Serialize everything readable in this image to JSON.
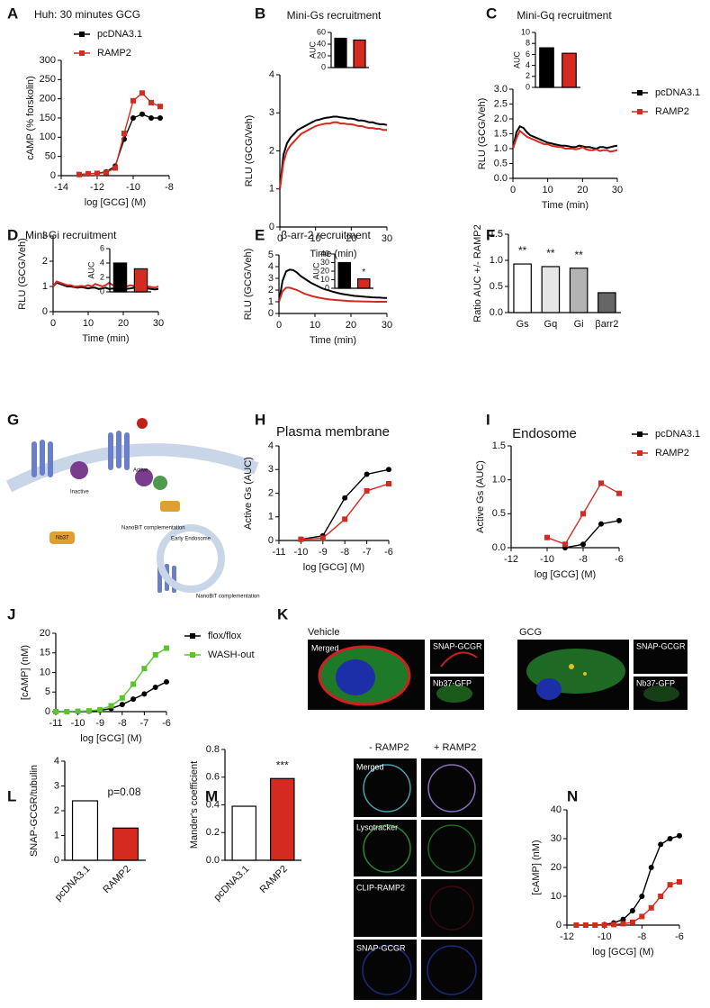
{
  "panel_letters": [
    "A",
    "B",
    "C",
    "D",
    "E",
    "F",
    "G",
    "H",
    "I",
    "J",
    "K",
    "L",
    "M",
    "N"
  ],
  "diagram": {
    "labels": [
      "Inactive",
      "Active",
      "Nb37",
      "NanoBiT complementation",
      "Early Endosome",
      "NanoBiT complementation"
    ]
  },
  "micrographs_K": {
    "conditions": [
      "Vehicle",
      "GCG"
    ],
    "channels": [
      "Merged",
      "SNAP-GCGR",
      "Nb37-GFP"
    ]
  },
  "micrographs_M": {
    "conditions": [
      "- RAMP2",
      "+ RAMP2"
    ],
    "channels": [
      "Merged",
      "Lysotracker",
      "CLIP-RAMP2",
      "SNAP-GCGR"
    ]
  },
  "chart_data": [
    {
      "type": "line",
      "title": "Huh: 30 minutes GCG",
      "xlabel": "log [GCG] (M)",
      "ylabel": "cAMP (% forskolin)",
      "legend": "upper left",
      "x": [
        -13,
        -12.5,
        -12,
        -11.5,
        -11,
        -10.5,
        -10,
        -9.5,
        -9,
        -8.5
      ],
      "xlim": [
        -14,
        -8
      ],
      "xticks": [
        -14,
        -12,
        -10,
        -8
      ],
      "ylim": [
        0,
        300
      ],
      "yticks": [
        0,
        50,
        100,
        150,
        200,
        250,
        300
      ],
      "series": [
        {
          "name": "pcDNA3.1",
          "color": "#000000",
          "values": [
            3,
            5,
            6,
            10,
            25,
            95,
            150,
            160,
            150,
            150
          ]
        },
        {
          "name": "RAMP2",
          "color": "#d42a20",
          "values": [
            3,
            5,
            6,
            8,
            20,
            110,
            195,
            215,
            190,
            180
          ]
        }
      ]
    },
    {
      "type": "line",
      "title": "Mini-Gs recruitment",
      "xlabel": "Time (min)",
      "ylabel": "RLU (GCG/Veh)",
      "x": [
        0,
        1,
        2,
        3,
        4,
        5,
        6,
        7,
        8,
        9,
        10,
        11,
        12,
        13,
        14,
        15,
        16,
        17,
        18,
        19,
        20,
        21,
        22,
        23,
        24,
        25,
        26,
        27,
        28,
        29,
        30
      ],
      "xlim": [
        0,
        30
      ],
      "xticks": [
        0,
        10,
        20,
        30
      ],
      "ylim": [
        0,
        4
      ],
      "yticks": [
        0,
        1,
        2,
        3,
        4
      ],
      "series": [
        {
          "name": "pcDNA3.1",
          "color": "#000000",
          "values": [
            1.0,
            1.9,
            2.2,
            2.35,
            2.45,
            2.55,
            2.6,
            2.65,
            2.7,
            2.75,
            2.8,
            2.82,
            2.85,
            2.87,
            2.88,
            2.9,
            2.9,
            2.88,
            2.87,
            2.85,
            2.85,
            2.83,
            2.8,
            2.8,
            2.78,
            2.75,
            2.75,
            2.72,
            2.7,
            2.7,
            2.68
          ]
        },
        {
          "name": "RAMP2",
          "color": "#d42a20",
          "values": [
            1.0,
            1.7,
            2.0,
            2.15,
            2.25,
            2.35,
            2.45,
            2.5,
            2.55,
            2.6,
            2.65,
            2.68,
            2.7,
            2.72,
            2.72,
            2.75,
            2.75,
            2.72,
            2.72,
            2.7,
            2.7,
            2.68,
            2.65,
            2.65,
            2.62,
            2.6,
            2.6,
            2.58,
            2.58,
            2.55,
            2.55
          ]
        }
      ]
    },
    {
      "type": "bar",
      "ylabel": "AUC",
      "categories": [
        null,
        null
      ],
      "values": [
        50,
        47
      ],
      "colors": [
        "#000000",
        "#d42a20"
      ],
      "ylim": [
        0,
        60
      ],
      "yticks": [
        0,
        20,
        40,
        60
      ]
    },
    {
      "type": "line",
      "title": "Mini-Gq recruitment",
      "xlabel": "Time (min)",
      "ylabel": "RLU (GCG/Veh)",
      "legend": "outside right",
      "x": [
        0,
        1,
        2,
        3,
        4,
        5,
        6,
        7,
        8,
        9,
        10,
        11,
        12,
        13,
        14,
        15,
        16,
        17,
        18,
        19,
        20,
        21,
        22,
        23,
        24,
        25,
        26,
        27,
        28,
        29,
        30
      ],
      "xlim": [
        0,
        30
      ],
      "xticks": [
        0,
        10,
        20,
        30
      ],
      "ylim": [
        0,
        3
      ],
      "yticks": [
        {
          "value": 0,
          "label": "0.0"
        },
        {
          "value": 0.5,
          "label": "0.5"
        },
        {
          "value": 1,
          "label": "1.0"
        },
        {
          "value": 1.5,
          "label": "1.5"
        },
        {
          "value": 2,
          "label": "2.0"
        },
        {
          "value": 2.5,
          "label": "2.5"
        },
        {
          "value": 3,
          "label": "3.0"
        }
      ],
      "series": [
        {
          "name": "pcDNA3.1",
          "color": "#000000",
          "values": [
            1.0,
            1.55,
            1.75,
            1.7,
            1.55,
            1.45,
            1.4,
            1.35,
            1.3,
            1.25,
            1.2,
            1.18,
            1.15,
            1.12,
            1.1,
            1.1,
            1.08,
            1.05,
            1.05,
            1.1,
            1.08,
            1.05,
            1.05,
            1.02,
            1.0,
            1.05,
            1.05,
            1.02,
            1.05,
            1.08,
            1.1
          ]
        },
        {
          "name": "RAMP2",
          "color": "#d42a20",
          "values": [
            1.0,
            1.35,
            1.6,
            1.5,
            1.4,
            1.35,
            1.3,
            1.25,
            1.2,
            1.15,
            1.15,
            1.1,
            1.08,
            1.05,
            1.05,
            1.0,
            1.0,
            1.0,
            0.98,
            1.0,
            1.05,
            0.98,
            0.95,
            0.95,
            0.98,
            0.92,
            0.95,
            0.95,
            0.9,
            0.92,
            0.95
          ]
        }
      ]
    },
    {
      "type": "bar",
      "ylabel": "AUC",
      "categories": [
        null,
        null
      ],
      "values": [
        7.2,
        6.2
      ],
      "colors": [
        "#000000",
        "#d42a20"
      ],
      "ylim": [
        0,
        10
      ],
      "yticks": [
        0,
        2,
        4,
        6,
        8,
        10
      ]
    },
    {
      "type": "line",
      "title": "Mini-Gi recruitment",
      "xlabel": "Time (min)",
      "ylabel": "RLU (GCG/Veh)",
      "x": [
        0,
        1,
        2,
        3,
        4,
        5,
        6,
        7,
        8,
        9,
        10,
        11,
        12,
        13,
        14,
        15,
        16,
        17,
        18,
        19,
        20,
        21,
        22,
        23,
        24,
        25,
        26,
        27,
        28,
        29,
        30
      ],
      "xlim": [
        0,
        30
      ],
      "xticks": [
        0,
        10,
        20,
        30
      ],
      "ylim": [
        0,
        3
      ],
      "yticks": [
        0,
        1,
        2,
        3
      ],
      "series": [
        {
          "name": "pcDNA3.1",
          "color": "#000000",
          "values": [
            1.0,
            1.15,
            1.1,
            1.05,
            1.0,
            1.0,
            0.98,
            0.95,
            0.98,
            0.95,
            0.92,
            0.95,
            0.95,
            0.9,
            0.92,
            0.95,
            0.9,
            0.92,
            0.9,
            0.95,
            0.92,
            0.9,
            0.92,
            0.95,
            0.9,
            0.92,
            0.9,
            0.92,
            0.9,
            0.88,
            0.9
          ]
        },
        {
          "name": "RAMP2",
          "color": "#d42a20",
          "values": [
            1.0,
            1.2,
            1.15,
            1.1,
            1.05,
            1.05,
            1.0,
            1.0,
            1.02,
            1.0,
            1.05,
            1.0,
            1.1,
            1.05,
            1.0,
            1.05,
            1.15,
            1.05,
            1.0,
            1.1,
            1.05,
            1.0,
            1.05,
            1.02,
            1.0,
            1.05,
            1.0,
            1.0,
            0.98,
            0.95,
            1.0
          ]
        }
      ]
    },
    {
      "type": "bar",
      "ylabel": "AUC",
      "categories": [
        null,
        null
      ],
      "values": [
        4,
        3.2
      ],
      "colors": [
        "#000000",
        "#d42a20"
      ],
      "ylim": [
        0,
        6
      ],
      "yticks": [
        0,
        2,
        4,
        6
      ]
    },
    {
      "type": "line",
      "title": "β-arr-2 recruitment",
      "xlabel": "Time (min)",
      "ylabel": "RLU (GCG/Veh)",
      "x": [
        0,
        1,
        2,
        3,
        4,
        5,
        6,
        7,
        8,
        9,
        10,
        11,
        12,
        13,
        14,
        15,
        16,
        17,
        18,
        19,
        20,
        21,
        22,
        23,
        24,
        25,
        26,
        27,
        28,
        29,
        30
      ],
      "xlim": [
        0,
        30
      ],
      "xticks": [
        0,
        10,
        20,
        30
      ],
      "ylim": [
        0,
        5
      ],
      "yticks": [
        0,
        1,
        2,
        3,
        4,
        5
      ],
      "series": [
        {
          "name": "pcDNA3.1",
          "color": "#000000",
          "values": [
            1.0,
            2.8,
            3.6,
            3.75,
            3.7,
            3.5,
            3.2,
            3.0,
            2.8,
            2.6,
            2.45,
            2.3,
            2.15,
            2.05,
            1.95,
            1.85,
            1.78,
            1.7,
            1.65,
            1.6,
            1.55,
            1.5,
            1.48,
            1.45,
            1.42,
            1.4,
            1.38,
            1.36,
            1.35,
            1.33,
            1.32
          ]
        },
        {
          "name": "RAMP2",
          "color": "#d42a20",
          "values": [
            1.0,
            1.9,
            2.2,
            2.2,
            2.1,
            2.0,
            1.85,
            1.7,
            1.6,
            1.5,
            1.42,
            1.35,
            1.3,
            1.25,
            1.2,
            1.18,
            1.15,
            1.12,
            1.1,
            1.08,
            1.06,
            1.05,
            1.04,
            1.03,
            1.02,
            1.02,
            1.01,
            1.0,
            1.0,
            1.0,
            1.0
          ]
        }
      ]
    },
    {
      "type": "bar",
      "ylabel": "AUC",
      "categories": [
        null,
        null
      ],
      "values": [
        30,
        11
      ],
      "colors": [
        "#000000",
        "#d42a20"
      ],
      "significance": [
        null,
        "*"
      ],
      "ylim": [
        0,
        40
      ],
      "yticks": [
        0,
        10,
        20,
        30,
        40
      ]
    },
    {
      "type": "bar",
      "ylabel": "Ratio AUC +/- RAMP2",
      "categories": [
        "Gs",
        "Gq",
        "Gi",
        "βarr2"
      ],
      "values": [
        0.93,
        0.88,
        0.85,
        0.38
      ],
      "colors": [
        "#ffffff",
        "#e6e6e6",
        "#b3b3b3",
        "#666666"
      ],
      "significance": [
        "**",
        "**",
        "**",
        null
      ],
      "ylim": [
        0,
        1.5
      ],
      "yticks": [
        {
          "value": 0,
          "label": "0.0"
        },
        {
          "value": 0.5,
          "label": "0.5"
        },
        {
          "value": 1,
          "label": "1.0"
        },
        {
          "value": 1.5,
          "label": "1.5"
        }
      ]
    },
    {
      "type": "line",
      "title": "Plasma membrane",
      "xlabel": "log [GCG] (M)",
      "ylabel": "Active Gs (AUC)",
      "x": [
        -10,
        -9,
        -8,
        -7,
        -6
      ],
      "xlim": [
        -11,
        -6
      ],
      "xticks": [
        -11,
        -10,
        -9,
        -8,
        -7,
        -6
      ],
      "ylim": [
        0,
        4
      ],
      "yticks": [
        0,
        1,
        2,
        3,
        4
      ],
      "series": [
        {
          "name": "pcDNA3.1",
          "color": "#000000",
          "values": [
            0.05,
            0.2,
            1.8,
            2.8,
            3.0
          ]
        },
        {
          "name": "RAMP2",
          "color": "#d42a20",
          "values": [
            0.05,
            0.1,
            0.9,
            2.1,
            2.4
          ]
        }
      ]
    },
    {
      "type": "line",
      "title": "Endosome",
      "xlabel": "log [GCG] (M)",
      "ylabel": "Active Gs (AUC)",
      "legend": "outside right",
      "x": [
        -10,
        -9,
        -8,
        -7,
        -6
      ],
      "xlim": [
        -12,
        -6
      ],
      "xticks": [
        -12,
        -10,
        -8,
        -6
      ],
      "ylim": [
        0,
        1.5
      ],
      "yticks": [
        {
          "value": 0,
          "label": "0.0"
        },
        {
          "value": 0.5,
          "label": "0.5"
        },
        {
          "value": 1,
          "label": "1.0"
        },
        {
          "value": 1.5,
          "label": "1.5"
        }
      ],
      "series": [
        {
          "name": "pcDNA3.1",
          "color": "#000000",
          "values": [
            null,
            0,
            0.05,
            0.35,
            0.4
          ]
        },
        {
          "name": "RAMP2",
          "color": "#d42a20",
          "values": [
            0.15,
            0.05,
            0.5,
            0.95,
            0.8
          ]
        }
      ]
    },
    {
      "type": "line",
      "xlabel": "log [GCG] (M)",
      "ylabel": "[cAMP] (nM)",
      "legend": "outside right",
      "x": [
        -11,
        -10.5,
        -10,
        -9.5,
        -9,
        -8.5,
        -8,
        -7.5,
        -7,
        -6.5,
        -6
      ],
      "xlim": [
        -11,
        -6
      ],
      "xticks": [
        -11,
        -10,
        -9,
        -8,
        -7,
        -6
      ],
      "ylim": [
        0,
        20
      ],
      "yticks": [
        0,
        5,
        10,
        15,
        20
      ],
      "series": [
        {
          "name": "flox/flox",
          "color": "#000000",
          "values": [
            0,
            0,
            0,
            0.1,
            0.3,
            0.8,
            1.8,
            3.2,
            4.5,
            6.2,
            7.6
          ]
        },
        {
          "name": "WASH-out",
          "color": "#5cc22f",
          "values": [
            0,
            0,
            0.1,
            0.2,
            0.5,
            1.5,
            3.5,
            7,
            11,
            14.5,
            16.2
          ]
        }
      ]
    },
    {
      "type": "bar",
      "ylabel": "SNAP-GCGR/tubulin",
      "categories": [
        "pcDNA3.1",
        "RAMP2"
      ],
      "values": [
        2.4,
        1.3
      ],
      "colors": [
        "#ffffff",
        "#d42a20"
      ],
      "annotation": "p=0.08",
      "xtick_rotation": 45,
      "ylim": [
        0,
        4
      ],
      "yticks": [
        0,
        1,
        2,
        3,
        4
      ]
    },
    {
      "type": "bar",
      "ylabel": "Mander's coefficient",
      "categories": [
        "pcDNA3.1",
        "RAMP2"
      ],
      "values": [
        0.39,
        0.59
      ],
      "colors": [
        "#ffffff",
        "#d42a20"
      ],
      "significance": [
        null,
        "***"
      ],
      "xtick_rotation": 45,
      "ylim": [
        0,
        0.8
      ],
      "yticks": [
        {
          "value": 0,
          "label": "0.0"
        },
        {
          "value": 0.2,
          "label": "0.2"
        },
        {
          "value": 0.4,
          "label": "0.4"
        },
        {
          "value": 0.6,
          "label": "0.6"
        },
        {
          "value": 0.8,
          "label": "0.8"
        }
      ]
    },
    {
      "type": "line",
      "xlabel": "log [GCG] (M)",
      "ylabel": "[cAMP] (nM)",
      "x": [
        -11.5,
        -11,
        -10.5,
        -10,
        -9.5,
        -9,
        -8.5,
        -8,
        -7.5,
        -7,
        -6.5,
        -6
      ],
      "xlim": [
        -12,
        -6
      ],
      "xticks": [
        -12,
        -10,
        -8,
        -6
      ],
      "ylim": [
        0,
        40
      ],
      "yticks": [
        0,
        10,
        20,
        30,
        40
      ],
      "series": [
        {
          "name": "pcDNA3.1",
          "color": "#000000",
          "values": [
            0,
            0,
            0,
            0.2,
            0.8,
            2,
            5,
            10,
            20,
            28,
            30,
            31
          ]
        },
        {
          "name": "RAMP2",
          "color": "#d42a20",
          "values": [
            0,
            0,
            0,
            0,
            0.2,
            0.5,
            1,
            3,
            6,
            10,
            14,
            15
          ]
        }
      ]
    }
  ]
}
